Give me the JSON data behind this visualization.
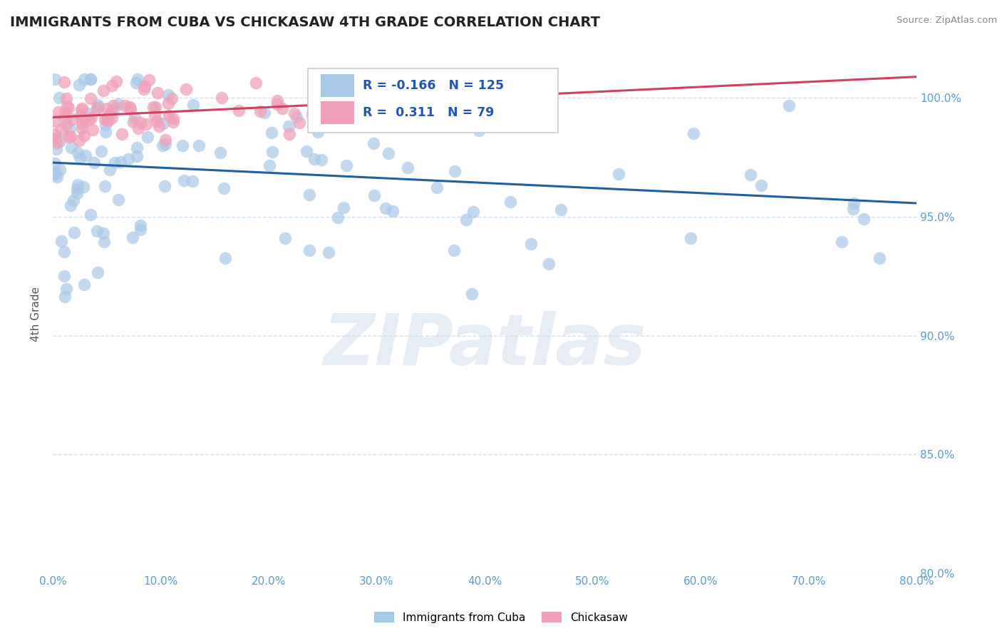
{
  "title": "IMMIGRANTS FROM CUBA VS CHICKASAW 4TH GRADE CORRELATION CHART",
  "source_text": "Source: ZipAtlas.com",
  "ylabel": "4th Grade",
  "watermark": "ZIPatlas",
  "xmin": 0.0,
  "xmax": 80.0,
  "ymin": 80.0,
  "ymax": 101.8,
  "yticks": [
    80.0,
    85.0,
    90.0,
    95.0,
    100.0
  ],
  "xticks": [
    0.0,
    10.0,
    20.0,
    30.0,
    40.0,
    50.0,
    60.0,
    70.0,
    80.0
  ],
  "blue_color": "#a8c8e8",
  "pink_color": "#f0a0b8",
  "blue_line_color": "#2060a0",
  "pink_line_color": "#d04060",
  "legend_blue_label": "Immigrants from Cuba",
  "legend_pink_label": "Chickasaw",
  "R_blue": -0.166,
  "N_blue": 125,
  "R_pink": 0.311,
  "N_pink": 79,
  "tick_color": "#5b9bd5",
  "title_color": "#222222",
  "source_color": "#888888",
  "ylabel_color": "#555555",
  "grid_color": "#c0d8f0",
  "watermark_color": "#c8d8e8",
  "legend_edge_color": "#cccccc",
  "legend_text_color": "#2255bb"
}
